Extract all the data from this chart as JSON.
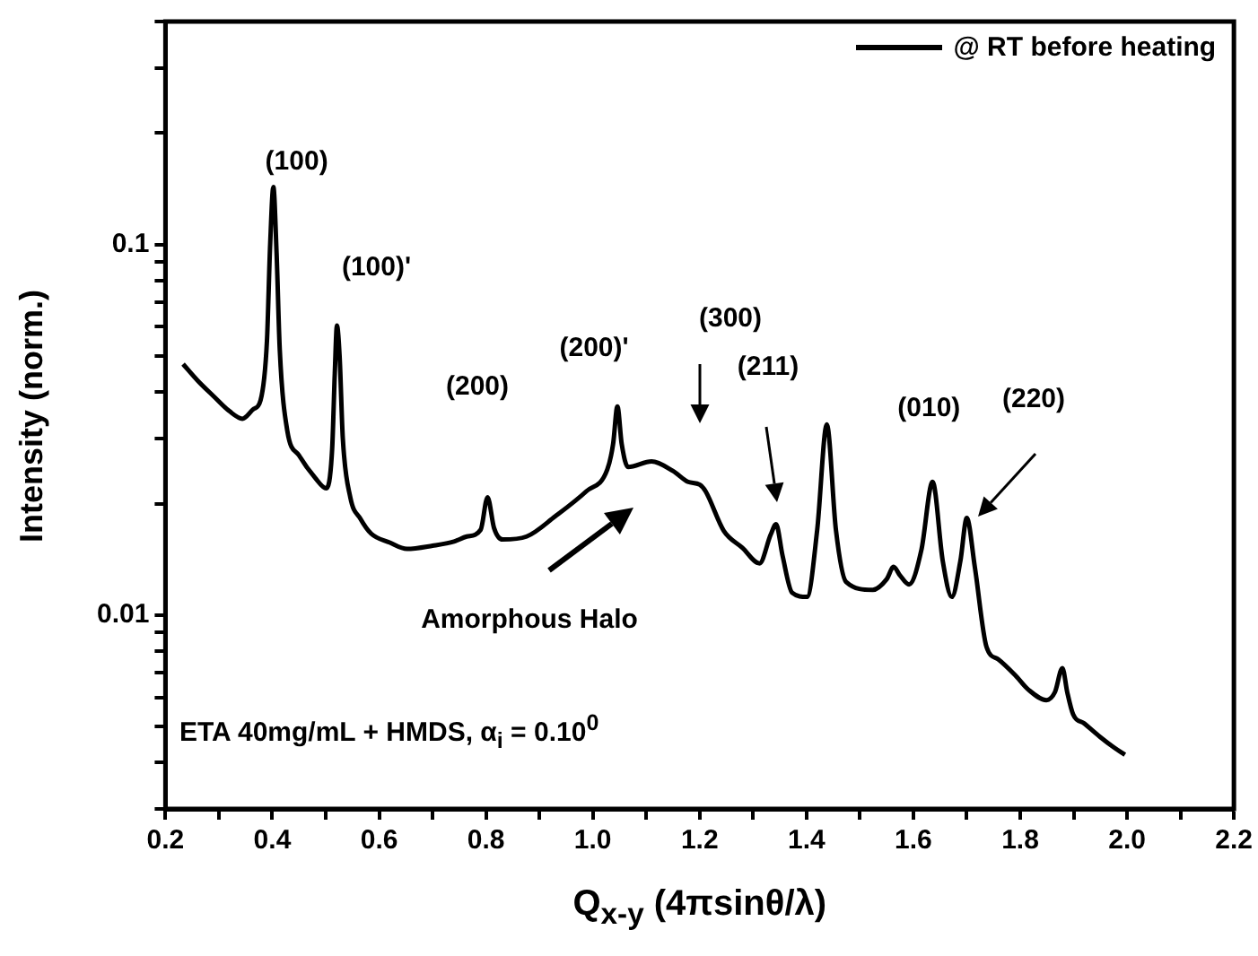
{
  "chart_data": {
    "type": "line",
    "xlabel": "Q$_{x-y}$ (4πsinθ/λ)",
    "ylabel": "Intensity (norm.)",
    "series": [
      {
        "name": "@ RT before heating",
        "color": "#000000",
        "x": [
          0.233,
          0.26,
          0.29,
          0.32,
          0.344,
          0.365,
          0.378,
          0.39,
          0.396,
          0.402,
          0.408,
          0.414,
          0.428,
          0.45,
          0.48,
          0.501,
          0.512,
          0.517,
          0.521,
          0.526,
          0.532,
          0.546,
          0.565,
          0.585,
          0.62,
          0.652,
          0.7,
          0.74,
          0.764,
          0.79,
          0.803,
          0.815,
          0.831,
          0.876,
          0.93,
          0.988,
          1.027,
          1.038,
          1.046,
          1.054,
          1.066,
          1.11,
          1.15,
          1.178,
          1.2,
          1.211,
          1.245,
          1.28,
          1.312,
          1.333,
          1.343,
          1.355,
          1.373,
          1.401,
          1.42,
          1.438,
          1.455,
          1.474,
          1.524,
          1.55,
          1.563,
          1.575,
          1.592,
          1.615,
          1.636,
          1.655,
          1.672,
          1.688,
          1.7,
          1.715,
          1.737,
          1.759,
          1.79,
          1.815,
          1.849,
          1.865,
          1.879,
          1.888,
          1.899,
          1.92,
          1.949,
          1.975,
          1.996
        ],
        "values": [
          0.0476,
          0.043,
          0.039,
          0.0355,
          0.0339,
          0.036,
          0.038,
          0.055,
          0.1,
          0.143,
          0.095,
          0.052,
          0.0315,
          0.027,
          0.0235,
          0.022,
          0.028,
          0.045,
          0.0605,
          0.05,
          0.03,
          0.0208,
          0.0182,
          0.0166,
          0.0157,
          0.0151,
          0.0154,
          0.0158,
          0.0163,
          0.017,
          0.0208,
          0.0172,
          0.016,
          0.0163,
          0.0185,
          0.0216,
          0.0247,
          0.029,
          0.0366,
          0.029,
          0.0251,
          0.026,
          0.0245,
          0.0229,
          0.0225,
          0.0216,
          0.0169,
          0.0152,
          0.0138,
          0.0165,
          0.0176,
          0.0145,
          0.0115,
          0.0112,
          0.017,
          0.0327,
          0.017,
          0.0123,
          0.0117,
          0.0125,
          0.0135,
          0.0128,
          0.0121,
          0.015,
          0.0229,
          0.014,
          0.0112,
          0.014,
          0.0183,
          0.0135,
          0.0082,
          0.0076,
          0.0069,
          0.0063,
          0.0059,
          0.0062,
          0.0072,
          0.0062,
          0.0054,
          0.0051,
          0.0047,
          0.0044,
          0.0042
        ]
      }
    ],
    "xlim": [
      0.2,
      2.2
    ],
    "xticks": [
      0.2,
      {
        "value": 0.3,
        "label": null
      },
      0.4,
      {
        "value": 0.5,
        "label": null
      },
      0.6,
      {
        "value": 0.7,
        "label": null
      },
      0.8,
      {
        "value": 0.9,
        "label": null
      },
      {
        "value": 1,
        "label": "1.0"
      },
      {
        "value": 1.1,
        "label": null
      },
      1.2,
      {
        "value": 1.3,
        "label": null
      },
      1.4,
      {
        "value": 1.5,
        "label": null
      },
      1.6,
      {
        "value": 1.7,
        "label": null
      },
      1.8,
      {
        "value": 1.9,
        "label": null
      },
      {
        "value": 2,
        "label": "2.0"
      },
      {
        "value": 2.1,
        "label": null
      },
      2.2
    ],
    "ylim": [
      0.003,
      0.4
    ],
    "yticks": [
      {
        "value": 0.003,
        "label": null
      },
      {
        "value": 0.004,
        "label": null
      },
      {
        "value": 0.005,
        "label": null
      },
      {
        "value": 0.006,
        "label": null
      },
      {
        "value": 0.007,
        "label": null
      },
      {
        "value": 0.008,
        "label": null
      },
      {
        "value": 0.009,
        "label": null
      },
      0.01,
      {
        "value": 0.02,
        "label": null
      },
      {
        "value": 0.03,
        "label": null
      },
      {
        "value": 0.04,
        "label": null
      },
      {
        "value": 0.05,
        "label": null
      },
      {
        "value": 0.06,
        "label": null
      },
      {
        "value": 0.07,
        "label": null
      },
      {
        "value": 0.08,
        "label": null
      },
      {
        "value": 0.09,
        "label": null
      },
      0.1,
      {
        "value": 0.2,
        "label": null
      },
      {
        "value": 0.3,
        "label": null
      },
      {
        "value": 0.4,
        "label": null
      }
    ],
    "log": true,
    "legend": "top right",
    "marker": "none",
    "line_style": "solid",
    "annotations": [
      {
        "text": "(100)",
        "x": 0.402,
        "y": 0.143
      },
      {
        "text": "(100)'",
        "x": 0.521,
        "y": 0.0605
      },
      "(200)",
      {
        "text": "(200)'",
        "x": 1.046,
        "y": 0.0366
      },
      "(300)",
      "(211)",
      {
        "text": "(010)",
        "x": 1.636,
        "y": 0.0229
      },
      "(220)",
      "Amorphous Halo",
      "ETA 40mg/mL + HMDS, α$_{i}$ = 0.10$^{0}$"
    ]
  }
}
